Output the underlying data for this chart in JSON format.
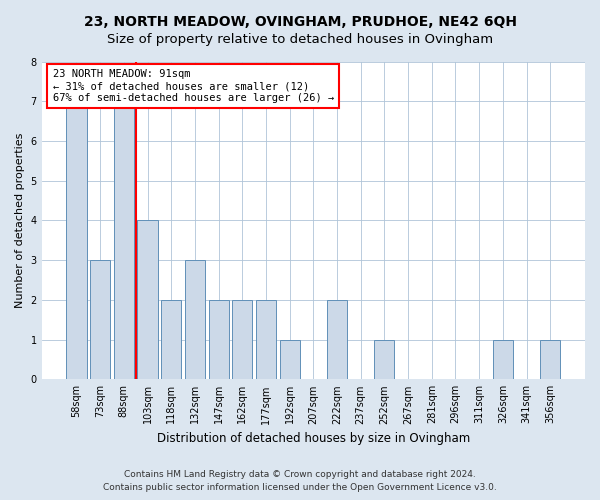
{
  "title": "23, NORTH MEADOW, OVINGHAM, PRUDHOE, NE42 6QH",
  "subtitle": "Size of property relative to detached houses in Ovingham",
  "xlabel": "Distribution of detached houses by size in Ovingham",
  "ylabel": "Number of detached properties",
  "categories": [
    "58sqm",
    "73sqm",
    "88sqm",
    "103sqm",
    "118sqm",
    "132sqm",
    "147sqm",
    "162sqm",
    "177sqm",
    "192sqm",
    "207sqm",
    "222sqm",
    "237sqm",
    "252sqm",
    "267sqm",
    "281sqm",
    "296sqm",
    "311sqm",
    "326sqm",
    "341sqm",
    "356sqm"
  ],
  "values": [
    7,
    3,
    7,
    4,
    2,
    3,
    2,
    2,
    2,
    1,
    0,
    2,
    0,
    1,
    0,
    0,
    0,
    0,
    1,
    0,
    1
  ],
  "bar_color": "#ccd9e8",
  "bar_edge_color": "#6090b8",
  "property_line_x": 2.5,
  "property_sqm": 91,
  "annotation_text": "23 NORTH MEADOW: 91sqm\n← 31% of detached houses are smaller (12)\n67% of semi-detached houses are larger (26) →",
  "annotation_box_color": "white",
  "annotation_box_edge_color": "red",
  "vline_color": "red",
  "ylim": [
    0,
    8
  ],
  "yticks": [
    0,
    1,
    2,
    3,
    4,
    5,
    6,
    7,
    8
  ],
  "fig_background_color": "#dce6f0",
  "plot_background_color": "white",
  "footer1": "Contains HM Land Registry data © Crown copyright and database right 2024.",
  "footer2": "Contains public sector information licensed under the Open Government Licence v3.0.",
  "title_fontsize": 10,
  "subtitle_fontsize": 9.5,
  "xlabel_fontsize": 8.5,
  "ylabel_fontsize": 8,
  "tick_fontsize": 7,
  "annotation_fontsize": 7.5,
  "footer_fontsize": 6.5
}
